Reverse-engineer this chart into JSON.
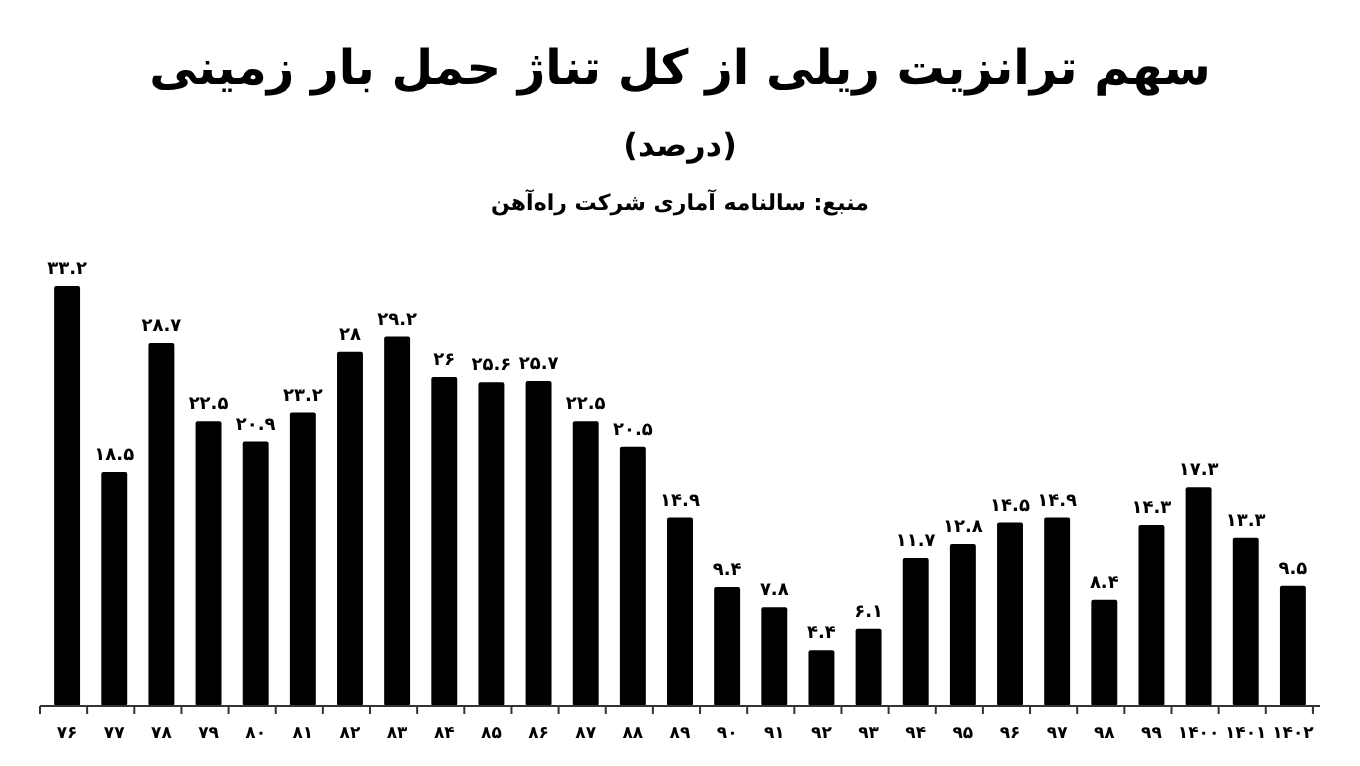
{
  "chart_data": {
    "type": "bar",
    "title": "سهم ترانزیت ریلی از کل تناژ حمل بار زمینی",
    "subtitle": "(درصد)",
    "annotations": [
      "منبع: سالنامه آماری شرکت راه‌آهن"
    ],
    "categories": [
      "۷۶",
      "۷۷",
      "۷۸",
      "۷۹",
      "۸۰",
      "۸۱",
      "۸۲",
      "۸۳",
      "۸۴",
      "۸۵",
      "۸۶",
      "۸۷",
      "۸۸",
      "۸۹",
      "۹۰",
      "۹۱",
      "۹۲",
      "۹۳",
      "۹۴",
      "۹۵",
      "۹۶",
      "۹۷",
      "۹۸",
      "۹۹",
      "۱۴۰۰",
      "۱۴۰۱",
      "۱۴۰۲"
    ],
    "values": [
      33.2,
      18.5,
      28.7,
      22.5,
      20.9,
      23.2,
      28,
      29.2,
      26,
      25.6,
      25.7,
      22.5,
      20.5,
      14.9,
      9.4,
      7.8,
      4.4,
      6.1,
      11.7,
      12.8,
      14.5,
      14.9,
      8.4,
      14.3,
      17.3,
      13.3,
      9.5
    ],
    "value_labels": [
      "۳۳.۲",
      "۱۸.۵",
      "۲۸.۷",
      "۲۲.۵",
      "۲۰.۹",
      "۲۳.۲",
      "۲۸",
      "۲۹.۲",
      "۲۶",
      "۲۵.۶",
      "۲۵.۷",
      "۲۲.۵",
      "۲۰.۵",
      "۱۴.۹",
      "۹.۴",
      "۷.۸",
      "۴.۴",
      "۶.۱",
      "۱۱.۷",
      "۱۲.۸",
      "۱۴.۵",
      "۱۴.۹",
      "۸.۴",
      "۱۴.۳",
      "۱۷.۳",
      "۱۳.۳",
      "۹.۵"
    ],
    "color": "#000000"
  }
}
